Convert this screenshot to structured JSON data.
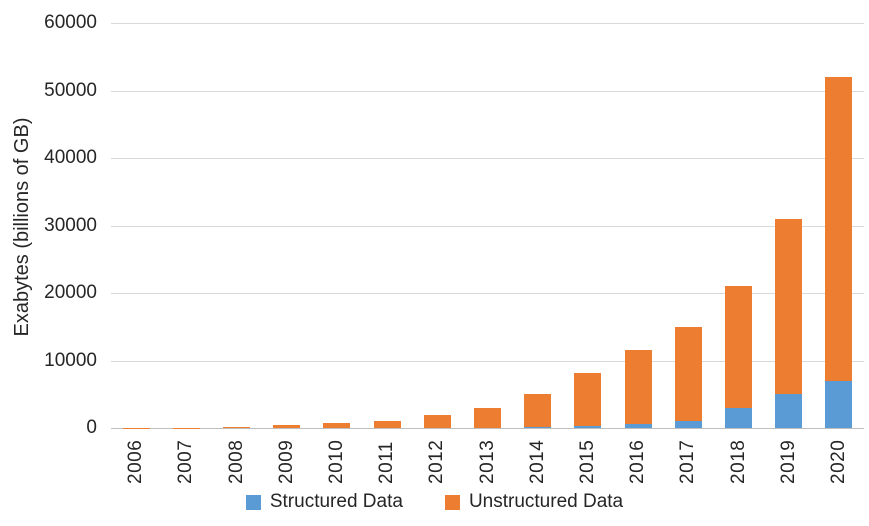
{
  "chart_data": {
    "type": "bar",
    "stacked": true,
    "title": "",
    "xlabel": "",
    "ylabel": "Exabytes (billions of GB)",
    "ylim": [
      0,
      60000
    ],
    "ytick_interval": 10000,
    "yticks": [
      0,
      10000,
      20000,
      30000,
      40000,
      50000,
      60000
    ],
    "grid": "horizontal-only",
    "legend_position": "bottom-center",
    "categories": [
      "2006",
      "2007",
      "2008",
      "2009",
      "2010",
      "2011",
      "2012",
      "2013",
      "2014",
      "2015",
      "2016",
      "2017",
      "2018",
      "2019",
      "2020"
    ],
    "series": [
      {
        "name": "Structured Data",
        "color": "#5B9BD5",
        "values": [
          0,
          0,
          0,
          0,
          0,
          0,
          0,
          0,
          100,
          300,
          600,
          1000,
          3000,
          5000,
          7000
        ]
      },
      {
        "name": "Unstructured Data",
        "color": "#ED7D31",
        "values": [
          25,
          60,
          180,
          400,
          700,
          1000,
          2000,
          3000,
          4900,
          7900,
          10900,
          14000,
          18000,
          26000,
          45000
        ]
      }
    ],
    "stacked_totals": [
      25,
      60,
      180,
      400,
      700,
      1000,
      2000,
      3000,
      5000,
      8200,
      11500,
      15000,
      21000,
      31000,
      52000
    ],
    "axis_text_color": "#262626",
    "gridline_color": "#D9D9D9"
  }
}
